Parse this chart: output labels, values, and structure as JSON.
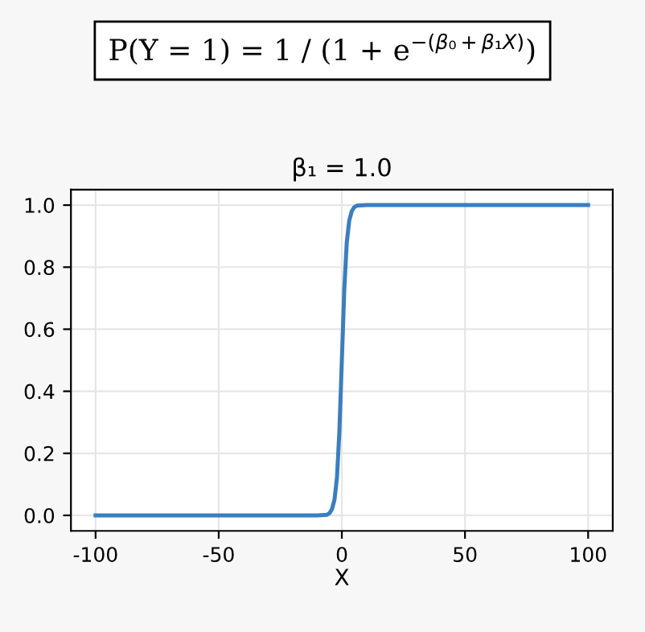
{
  "chart_data": {
    "type": "line",
    "title": "β₁ = 1.0",
    "xlabel": "X",
    "annotations": [
      "P(Y = 1) = 1 / (1 + e$^{−(β₀+β₁X)}$)"
    ],
    "x": [
      -100,
      -50,
      -10,
      -6,
      -5,
      -4,
      -3,
      -2,
      -1,
      0,
      1,
      2,
      3,
      4,
      5,
      6,
      10,
      50,
      100
    ],
    "series": [
      {
        "color": "#3a7ebf",
        "values": [
          0,
          0,
          0,
          0.002,
          0.007,
          0.02,
          0.05,
          0.12,
          0.27,
          0.5,
          0.73,
          0.88,
          0.95,
          0.98,
          0.993,
          0.998,
          1,
          1,
          1
        ]
      }
    ],
    "xlim": [
      -110,
      110
    ],
    "ylim": [
      -0.05,
      1.05
    ],
    "xticks": [
      -100,
      -50,
      0,
      50,
      100
    ],
    "yticks": [
      {
        "value": 0,
        "label": "0.0"
      },
      {
        "value": 0.2,
        "label": "0.2"
      },
      {
        "value": 0.4,
        "label": "0.4"
      },
      {
        "value": 0.6,
        "label": "0.6"
      },
      {
        "value": 0.8,
        "label": "0.8"
      },
      {
        "value": 1,
        "label": "1.0"
      }
    ],
    "grid": true,
    "legend": false,
    "marker": "none",
    "line_style": "solid"
  }
}
